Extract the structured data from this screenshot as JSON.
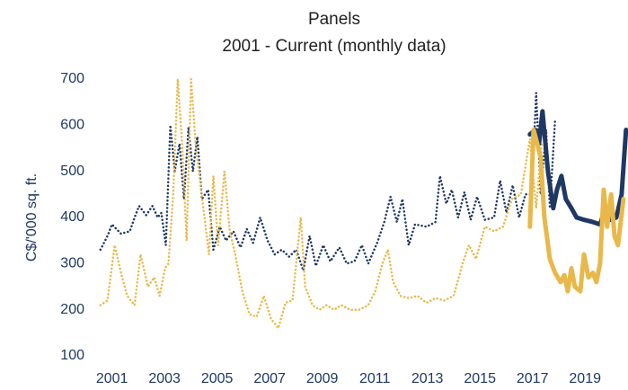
{
  "chart_data": {
    "type": "line",
    "title": "Panels",
    "subtitle": "2001 - Current (monthly data)",
    "y_label": "C$/'000 sq. ft.",
    "xlim": [
      2000.5,
      2020.6
    ],
    "xticks": [
      2001,
      2003,
      2005,
      2007,
      2009,
      2011,
      2013,
      2015,
      2017,
      2019
    ],
    "ylim": [
      100,
      700
    ],
    "yticks": [
      100,
      200,
      300,
      400,
      500,
      600,
      700
    ],
    "grid": false,
    "series": [
      {
        "color": "#1f3864",
        "line_style": "dotted",
        "x": [
          2000.56,
          2000.83,
          2001.0,
          2001.34,
          2001.68,
          2001.86,
          2002.03,
          2002.3,
          2002.54,
          2002.74,
          2002.88,
          2003.05,
          2003.22,
          2003.39,
          2003.57,
          2003.74,
          2003.91,
          2004.08,
          2004.25,
          2004.42,
          2004.66,
          2004.86,
          2005.1,
          2005.34,
          2005.62,
          2005.89,
          2006.13,
          2006.37,
          2006.64,
          2006.92,
          2007.19,
          2007.46,
          2007.74,
          2008.01,
          2008.28,
          2008.52,
          2008.76,
          2009.04,
          2009.31,
          2009.65,
          2009.93,
          2010.23,
          2010.51,
          2010.75,
          2011.09,
          2011.36,
          2011.6,
          2011.84,
          2012.05,
          2012.29,
          2012.53,
          2012.97,
          2013.31,
          2013.48,
          2013.72,
          2013.93,
          2014.17,
          2014.41,
          2014.65,
          2014.89,
          2015.19,
          2015.54,
          2015.77,
          2016.01,
          2016.25,
          2016.49,
          2016.73,
          2016.97,
          2017.14,
          2017.31,
          2017.52,
          2017.66,
          2017.86
        ],
        "values": [
          330,
          360,
          385,
          365,
          370,
          400,
          425,
          405,
          425,
          400,
          410,
          340,
          600,
          500,
          560,
          440,
          595,
          500,
          575,
          440,
          460,
          330,
          380,
          350,
          370,
          335,
          375,
          345,
          400,
          350,
          320,
          330,
          315,
          330,
          285,
          360,
          295,
          340,
          305,
          335,
          300,
          305,
          340,
          300,
          345,
          390,
          445,
          390,
          440,
          340,
          385,
          380,
          390,
          490,
          430,
          460,
          400,
          455,
          395,
          445,
          395,
          400,
          480,
          410,
          470,
          400,
          450,
          450,
          670,
          450,
          590,
          420,
          610
        ]
      },
      {
        "color": "#e8b84a",
        "line_style": "dotted",
        "x": [
          2000.56,
          2000.83,
          2001.1,
          2001.34,
          2001.58,
          2001.86,
          2002.09,
          2002.37,
          2002.61,
          2002.81,
          2003.02,
          2003.15,
          2003.33,
          2003.5,
          2003.67,
          2003.84,
          2004.01,
          2004.18,
          2004.35,
          2004.52,
          2004.69,
          2004.86,
          2005.04,
          2005.28,
          2005.48,
          2005.69,
          2005.96,
          2006.23,
          2006.51,
          2006.78,
          2007.05,
          2007.33,
          2007.6,
          2007.87,
          2008.18,
          2008.35,
          2008.63,
          2008.9,
          2009.17,
          2009.45,
          2009.72,
          2010.06,
          2010.41,
          2010.75,
          2011.02,
          2011.29,
          2011.5,
          2011.7,
          2011.98,
          2012.29,
          2012.63,
          2012.97,
          2013.31,
          2013.65,
          2014.0,
          2014.34,
          2014.58,
          2014.85,
          2015.19,
          2015.54,
          2015.88,
          2016.22,
          2016.56,
          2016.9,
          2017.14,
          2017.35
        ],
        "values": [
          210,
          220,
          340,
          280,
          230,
          210,
          320,
          250,
          270,
          230,
          290,
          300,
          450,
          700,
          560,
          350,
          700,
          560,
          480,
          400,
          320,
          490,
          340,
          500,
          370,
          320,
          240,
          190,
          185,
          230,
          180,
          160,
          215,
          220,
          400,
          250,
          210,
          200,
          210,
          200,
          210,
          200,
          200,
          210,
          240,
          300,
          330,
          260,
          230,
          225,
          230,
          215,
          225,
          220,
          230,
          300,
          340,
          310,
          380,
          370,
          380,
          440,
          450,
          570,
          420,
          560
        ]
      },
      {
        "color": "#1f3864",
        "line_style": "solid",
        "x": [
          2016.9,
          2017.11,
          2017.25,
          2017.38,
          2017.59,
          2017.79,
          2017.93,
          2018.1,
          2018.27,
          2018.48,
          2018.68,
          2018.96,
          2019.3,
          2019.57,
          2019.78,
          2019.99,
          2020.19,
          2020.39,
          2020.56
        ],
        "values": [
          580,
          590,
          560,
          630,
          500,
          420,
          460,
          490,
          440,
          420,
          400,
          395,
          390,
          385,
          420,
          395,
          400,
          450,
          590
        ]
      },
      {
        "color": "#e8b84a",
        "line_style": "solid",
        "x": [
          2016.9,
          2017.04,
          2017.18,
          2017.31,
          2017.45,
          2017.66,
          2017.86,
          2018.07,
          2018.21,
          2018.34,
          2018.48,
          2018.61,
          2018.82,
          2018.96,
          2019.13,
          2019.3,
          2019.43,
          2019.57,
          2019.71,
          2019.84,
          2019.99,
          2020.12,
          2020.25,
          2020.46
        ],
        "values": [
          380,
          590,
          560,
          530,
          400,
          310,
          280,
          260,
          275,
          240,
          290,
          250,
          240,
          320,
          270,
          280,
          260,
          300,
          460,
          380,
          450,
          360,
          340,
          440
        ]
      }
    ]
  }
}
